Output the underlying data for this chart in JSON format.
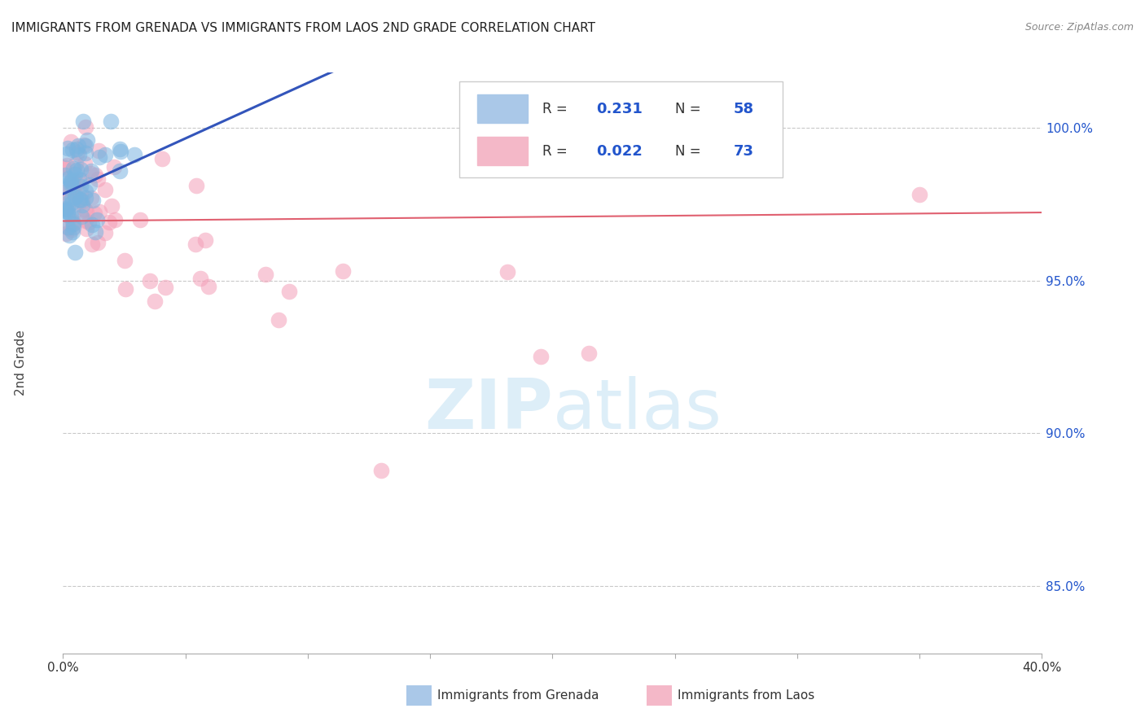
{
  "title": "IMMIGRANTS FROM GRENADA VS IMMIGRANTS FROM LAOS 2ND GRADE CORRELATION CHART",
  "source": "Source: ZipAtlas.com",
  "ylabel": "2nd Grade",
  "x_min": 0.0,
  "x_max": 0.4,
  "y_min": 0.828,
  "y_max": 1.018,
  "x_ticks": [
    0.0,
    0.05,
    0.1,
    0.15,
    0.2,
    0.25,
    0.3,
    0.35,
    0.4
  ],
  "x_tick_labels": [
    "0.0%",
    "",
    "",
    "",
    "",
    "",
    "",
    "",
    "40.0%"
  ],
  "y_ticks": [
    0.85,
    0.9,
    0.95,
    1.0
  ],
  "y_tick_labels": [
    "85.0%",
    "90.0%",
    "95.0%",
    "100.0%"
  ],
  "grenada_color": "#7ab4e0",
  "laos_color": "#f4a0b8",
  "grenada_edge_color": "#5a9acc",
  "laos_edge_color": "#e08090",
  "grenada_line_color": "#3355bb",
  "laos_line_color": "#e06070",
  "background_color": "#ffffff",
  "grid_color": "#bbbbbb",
  "watermark_color": "#ddeef8",
  "R_grenada": 0.231,
  "N_grenada": 58,
  "R_laos": 0.022,
  "N_laos": 73,
  "legend_grenada_color": "#aac8e8",
  "legend_laos_color": "#f4b8c8",
  "text_color": "#2255cc",
  "label_color": "#444444"
}
